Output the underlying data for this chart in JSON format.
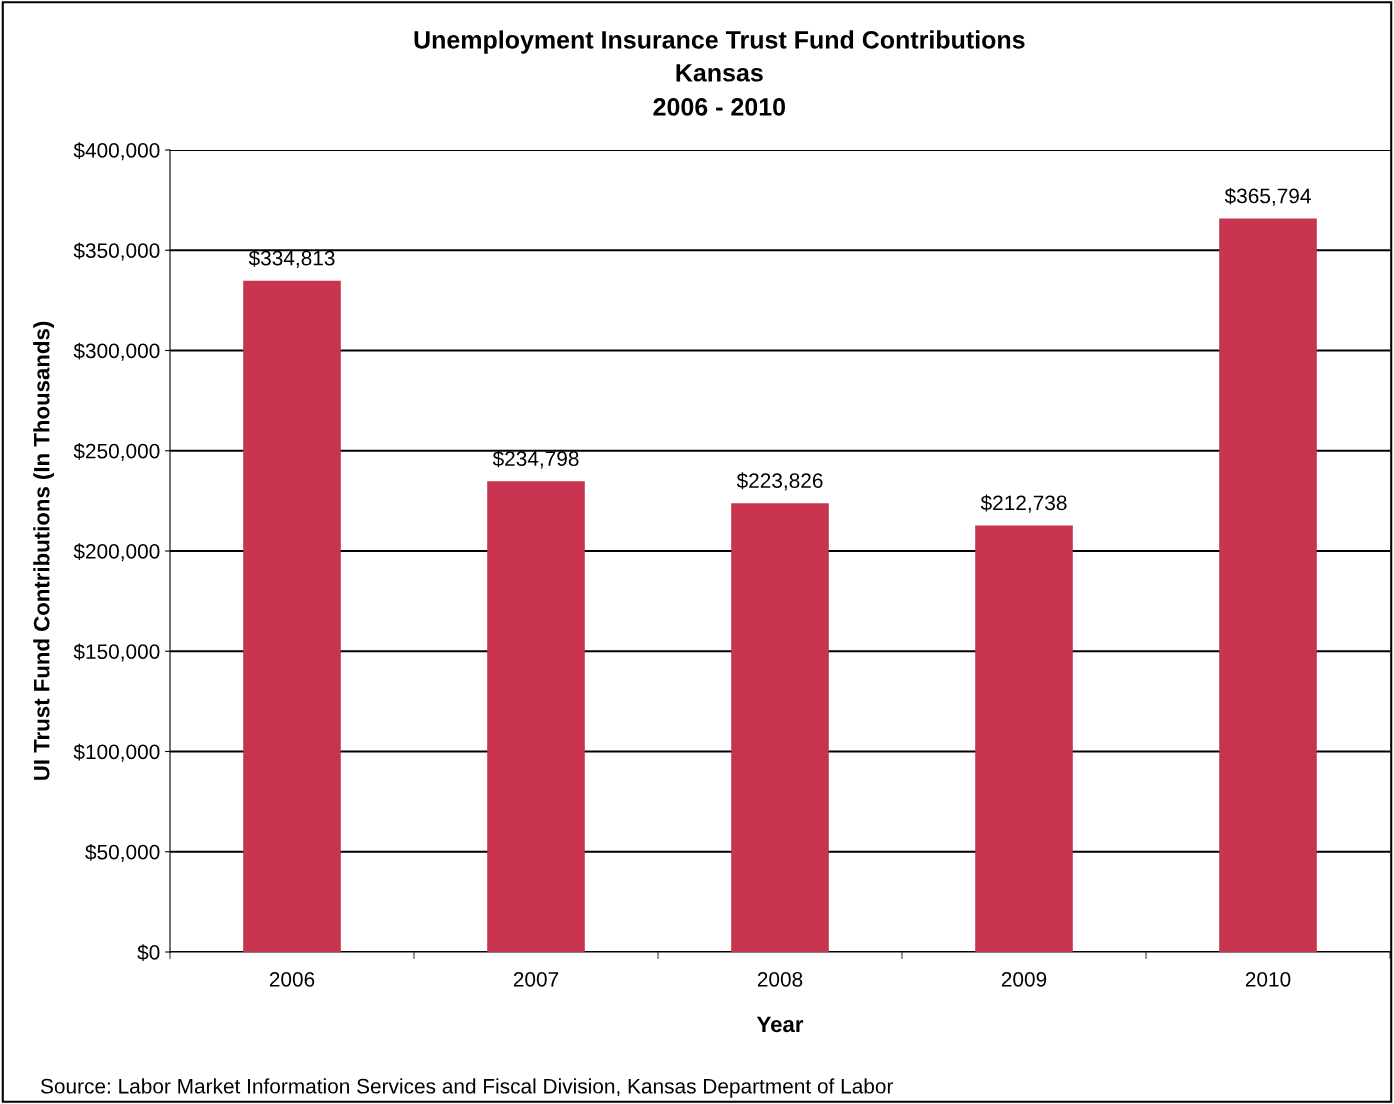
{
  "chart_data": {
    "type": "bar",
    "title": "Unemployment Insurance Trust Fund Contributions",
    "subtitle": "Kansas\n2006 - 2010",
    "xlabel": "Year",
    "ylabel": "UI Trust Fund Contributions (In Thousands)",
    "categories": [
      "2006",
      "2007",
      "2008",
      "2009",
      "2010"
    ],
    "values": [
      334813,
      234798,
      223826,
      212738,
      365794
    ],
    "value_labels": [
      "$334,813",
      "$234,798",
      "$223,826",
      "$212,738",
      "$365,794"
    ],
    "color": "#c8334f",
    "ylim": [
      0,
      400000
    ],
    "yticks": [
      {
        "value": 0,
        "label": "$0"
      },
      {
        "value": 50000,
        "label": "$50,000"
      },
      {
        "value": 100000,
        "label": "$100,000"
      },
      {
        "value": 150000,
        "label": "$150,000"
      },
      {
        "value": 200000,
        "label": "$200,000"
      },
      {
        "value": 250000,
        "label": "$250,000"
      },
      {
        "value": 300000,
        "label": "$300,000"
      },
      {
        "value": 350000,
        "label": "$350,000"
      },
      {
        "value": 400000,
        "label": "$400,000"
      }
    ],
    "grid": "y",
    "legend": false,
    "annotations": [
      "Source: Labor Market Information Services and Fiscal Division, Kansas Department of Labor"
    ]
  }
}
